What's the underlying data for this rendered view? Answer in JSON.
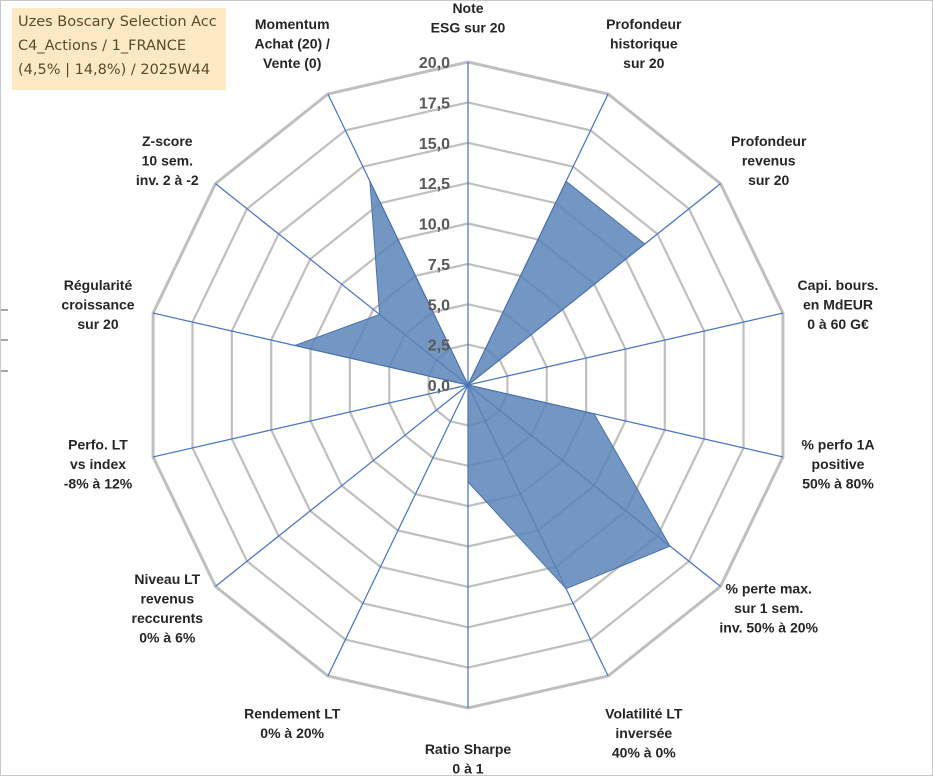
{
  "title_lines": [
    "Uzes Boscary Selection Acc",
    "C4_Actions / 1_FRANCE",
    "(4,5% | 14,8%) / 2025W44"
  ],
  "colors": {
    "fill": "#5b84b7",
    "stroke": "#4a72b0",
    "axis": "#4472c4",
    "grid": "#bfbfbf",
    "title_bg": "#fde9c4"
  },
  "chart_data": {
    "type": "radar",
    "rmin": 0,
    "rmax": 20,
    "ticks": [
      "0,0",
      "2,5",
      "5,0",
      "7,5",
      "10,0",
      "12,5",
      "15,0",
      "17,5",
      "20,0"
    ],
    "grid": true,
    "categories": [
      [
        "Note",
        "ESG sur 20"
      ],
      [
        "Profondeur",
        "historique",
        "sur 20"
      ],
      [
        "Profondeur",
        "revenus",
        "sur 20"
      ],
      [
        "Capi. bours.",
        "en MdEUR",
        "0 à 60 G€"
      ],
      [
        "% perfo 1A",
        "positive",
        "50% à 80%"
      ],
      [
        "% perte max.",
        "sur 1 sem.",
        "inv. 50% à 20%"
      ],
      [
        "Volatilité LT",
        "inversée",
        "40% à 0%"
      ],
      [
        "Ratio Sharpe",
        "0 à 1"
      ],
      [
        "Rendement LT",
        "0% à 20%"
      ],
      [
        "Niveau LT",
        "revenus",
        "reccurents",
        "0% à 6%"
      ],
      [
        "Perfo. LT",
        "vs index",
        "-8% à 12%"
      ],
      [
        "Régularité",
        "croissance",
        "sur 20"
      ],
      [
        "Z-score",
        "10 sem.",
        "inv. 2 à -2"
      ],
      [
        "Momentum",
        "Achat (20) /",
        "Vente (0)"
      ]
    ],
    "series": [
      {
        "values": [
          0,
          14,
          14,
          0,
          8,
          16,
          14,
          6,
          0,
          0,
          0,
          11,
          7,
          14
        ]
      }
    ]
  }
}
